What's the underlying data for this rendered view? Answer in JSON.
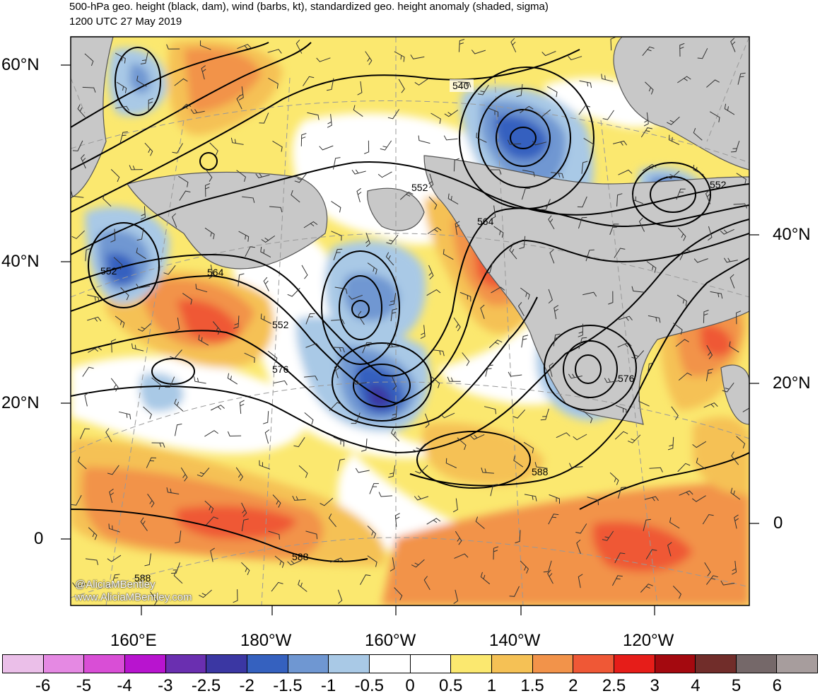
{
  "title": {
    "line1": "500-hPa geo. height (black, dam), wind (barbs, kt), standardized geo. height anomaly (shaded, sigma)",
    "line2": "1200 UTC 27 May 2019"
  },
  "axes": {
    "left_lat_labels": [
      "60°N",
      "40°N",
      "20°N",
      "0"
    ],
    "right_lat_labels": [
      "40°N",
      "20°N",
      "0"
    ],
    "lon_labels": [
      "160°E",
      "180°W",
      "160°W",
      "140°W",
      "120°W"
    ]
  },
  "contour_labels": [
    "540",
    "552",
    "552",
    "552",
    "552",
    "564",
    "564",
    "576",
    "576",
    "588",
    "588",
    "588"
  ],
  "credits": [
    "@AliciaMBentley",
    "www.AliciaMBentley.com"
  ],
  "colorbar": {
    "colors": [
      "#ebbfe9",
      "#e589e3",
      "#d94ed6",
      "#b814cf",
      "#6a2fb0",
      "#3b37a3",
      "#3561bf",
      "#6f97d2",
      "#a9c9e6",
      "#ffffff",
      "#ffffff",
      "#fbe86f",
      "#f5c155",
      "#f2934a",
      "#ef5836",
      "#e61d19",
      "#a4090f",
      "#712d2a",
      "#756869",
      "#a79d9d"
    ],
    "tick_labels": [
      "-6",
      "-5",
      "-4",
      "-3",
      "-2.5",
      "-2",
      "-1.5",
      "-1",
      "-0.5",
      "0",
      "0.5",
      "1",
      "1.5",
      "2",
      "2.5",
      "3",
      "4",
      "5",
      "6"
    ]
  },
  "colors": {
    "land": "#c8c8c8",
    "coast": "#555555",
    "contour": "#000000",
    "graticule": "#999999"
  }
}
